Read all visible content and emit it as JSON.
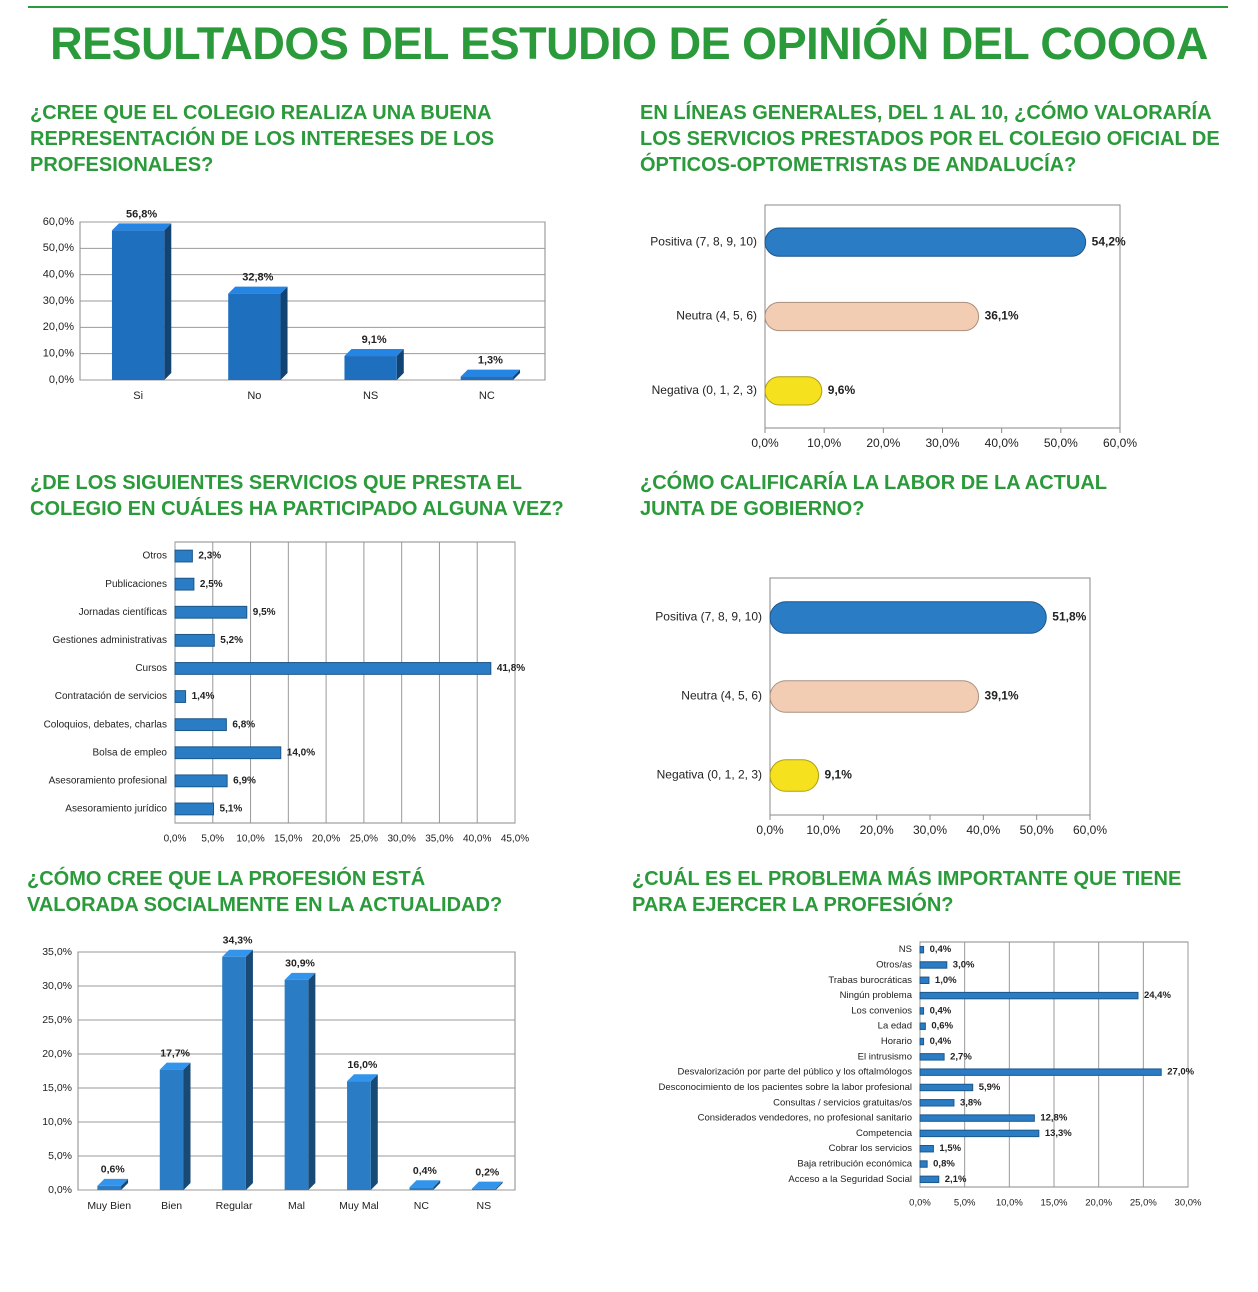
{
  "title": "RESULTADOS DEL ESTUDIO DE OPINIÓN DEL COOOA",
  "chart_data": [
    {
      "type": "bar",
      "title": "¿CREE QUE EL COLEGIO REALIZA UNA BUENA REPRESENTACIÓN DE LOS INTERESES DE LOS PROFESIONALES?",
      "categories": [
        "Si",
        "No",
        "NS",
        "NC"
      ],
      "values": [
        56.8,
        32.8,
        9.1,
        1.3
      ],
      "value_labels": [
        "56,8%",
        "32,8%",
        "9,1%",
        "1,3%"
      ],
      "color": "#1f6fbf",
      "ylim": [
        0,
        60
      ],
      "yticks": [
        {
          "value": 0,
          "label": "0,0%"
        },
        {
          "value": 10,
          "label": "10,0%"
        },
        {
          "value": 20,
          "label": "20,0%"
        },
        {
          "value": 30,
          "label": "30,0%"
        },
        {
          "value": 40,
          "label": "40,0%"
        },
        {
          "value": 50,
          "label": "50,0%"
        },
        {
          "value": 60,
          "label": "60,0%"
        }
      ],
      "grid": true
    },
    {
      "type": "barh",
      "title": "EN LÍNEAS GENERALES, DEL 1 AL 10, ¿CÓMO VALORARÍA LOS SERVICIOS PRESTADOS POR EL COLEGIO OFICIAL DE ÓPTICOS-OPTOMETRISTAS DE ANDALUCÍA?",
      "categories": [
        "Positiva (7, 8, 9, 10)",
        "Neutra (4, 5, 6)",
        "Negativa (0, 1, 2, 3)"
      ],
      "values": [
        54.2,
        36.1,
        9.6
      ],
      "value_labels": [
        "54,2%",
        "36,1%",
        "9,6%"
      ],
      "colors": [
        "#2a7cc4",
        "#f2cdb4",
        "#f5e11e"
      ],
      "xlim": [
        0,
        60
      ],
      "xticks": [
        {
          "value": 0,
          "label": "0,0%"
        },
        {
          "value": 10,
          "label": "10,0%"
        },
        {
          "value": 20,
          "label": "20,0%"
        },
        {
          "value": 30,
          "label": "30,0%"
        },
        {
          "value": 40,
          "label": "40,0%"
        },
        {
          "value": 50,
          "label": "50,0%"
        },
        {
          "value": 60,
          "label": "60,0%"
        }
      ],
      "grid": false
    },
    {
      "type": "barh",
      "title": "¿DE LOS SIGUIENTES SERVICIOS QUE PRESTA EL COLEGIO EN CUÁLES HA PARTICIPADO ALGUNA VEZ?",
      "categories": [
        "Otros",
        "Publicaciones",
        "Jornadas científicas",
        "Gestiones administrativas",
        "Cursos",
        "Contratación de servicios",
        "Coloquios, debates, charlas",
        "Bolsa de empleo",
        "Asesoramiento profesional",
        "Asesoramiento jurídico"
      ],
      "values": [
        2.3,
        2.5,
        9.5,
        5.2,
        41.8,
        1.4,
        6.8,
        14.0,
        6.9,
        5.1
      ],
      "value_labels": [
        "2,3%",
        "2,5%",
        "9,5%",
        "5,2%",
        "41,8%",
        "1,4%",
        "6,8%",
        "14,0%",
        "6,9%",
        "5,1%"
      ],
      "color": "#2a7cc4",
      "xlim": [
        0,
        45
      ],
      "xticks": [
        {
          "value": 0,
          "label": "0,0%"
        },
        {
          "value": 5,
          "label": "5,0%"
        },
        {
          "value": 10,
          "label": "10,0%"
        },
        {
          "value": 15,
          "label": "15,0%"
        },
        {
          "value": 20,
          "label": "20,0%"
        },
        {
          "value": 25,
          "label": "25,0%"
        },
        {
          "value": 30,
          "label": "30,0%"
        },
        {
          "value": 35,
          "label": "35,0%"
        },
        {
          "value": 40,
          "label": "40,0%"
        },
        {
          "value": 45,
          "label": "45,0%"
        }
      ],
      "grid": true
    },
    {
      "type": "barh",
      "title": "¿CÓMO CALIFICARÍA LA LABOR DE LA ACTUAL JUNTA DE GOBIERNO?",
      "categories": [
        "Positiva (7, 8, 9, 10)",
        "Neutra (4, 5, 6)",
        "Negativa (0, 1, 2, 3)"
      ],
      "values": [
        51.8,
        39.1,
        9.1
      ],
      "value_labels": [
        "51,8%",
        "39,1%",
        "9,1%"
      ],
      "colors": [
        "#2a7cc4",
        "#f2cdb4",
        "#f5e11e"
      ],
      "xlim": [
        0,
        60
      ],
      "xticks": [
        {
          "value": 0,
          "label": "0,0%"
        },
        {
          "value": 10,
          "label": "10,0%"
        },
        {
          "value": 20,
          "label": "20,0%"
        },
        {
          "value": 30,
          "label": "30,0%"
        },
        {
          "value": 40,
          "label": "40,0%"
        },
        {
          "value": 50,
          "label": "50,0%"
        },
        {
          "value": 60,
          "label": "60,0%"
        }
      ],
      "grid": false
    },
    {
      "type": "bar",
      "title": "¿CÓMO CREE QUE LA PROFESIÓN ESTÁ VALORADA SOCIALMENTE EN LA ACTUALIDAD?",
      "categories": [
        "Muy Bien",
        "Bien",
        "Regular",
        "Mal",
        "Muy Mal",
        "NC",
        "NS"
      ],
      "values": [
        0.6,
        17.7,
        34.3,
        30.9,
        16.0,
        0.4,
        0.2
      ],
      "value_labels": [
        "0,6%",
        "17,7%",
        "34,3%",
        "30,9%",
        "16,0%",
        "0,4%",
        "0,2%"
      ],
      "color": "#2a7cc4",
      "ylim": [
        0,
        35
      ],
      "yticks": [
        {
          "value": 0,
          "label": "0,0%"
        },
        {
          "value": 5,
          "label": "5,0%"
        },
        {
          "value": 10,
          "label": "10,0%"
        },
        {
          "value": 15,
          "label": "15,0%"
        },
        {
          "value": 20,
          "label": "20,0%"
        },
        {
          "value": 25,
          "label": "25,0%"
        },
        {
          "value": 30,
          "label": "30,0%"
        },
        {
          "value": 35,
          "label": "35,0%"
        }
      ],
      "grid": true
    },
    {
      "type": "barh",
      "title": "¿CUÁL ES EL PROBLEMA MÁS IMPORTANTE QUE TIENE PARA EJERCER LA PROFESIÓN?",
      "categories": [
        "NS",
        "Otros/as",
        "Trabas burocráticas",
        "Ningún problema",
        "Los convenios",
        "La edad",
        "Horario",
        "El intrusismo",
        "Desvalorización por parte del público y los oftalmólogos",
        "Desconocimiento de los pacientes sobre la labor profesional",
        "Consultas / servicios gratuitas/os",
        "Considerados vendedores, no profesional sanitario",
        "Competencia",
        "Cobrar los servicios",
        "Baja retribución económica",
        "Acceso a la Seguridad Social"
      ],
      "values": [
        0.4,
        3.0,
        1.0,
        24.4,
        0.4,
        0.6,
        0.4,
        2.7,
        27.0,
        5.9,
        3.8,
        12.8,
        13.3,
        1.5,
        0.8,
        2.1
      ],
      "value_labels": [
        "0,4%",
        "3,0%",
        "1,0%",
        "24,4%",
        "0,4%",
        "0,6%",
        "0,4%",
        "2,7%",
        "27,0%",
        "5,9%",
        "3,8%",
        "12,8%",
        "13,3%",
        "1,5%",
        "0,8%",
        "2,1%"
      ],
      "color": "#2a7cc4",
      "xlim": [
        0,
        30
      ],
      "xticks": [
        {
          "value": 0,
          "label": "0,0%"
        },
        {
          "value": 5,
          "label": "5,0%"
        },
        {
          "value": 10,
          "label": "10,0%"
        },
        {
          "value": 15,
          "label": "15,0%"
        },
        {
          "value": 20,
          "label": "20,0%"
        },
        {
          "value": 25,
          "label": "25,0%"
        },
        {
          "value": 30,
          "label": "30,0%"
        }
      ],
      "grid": true
    }
  ]
}
